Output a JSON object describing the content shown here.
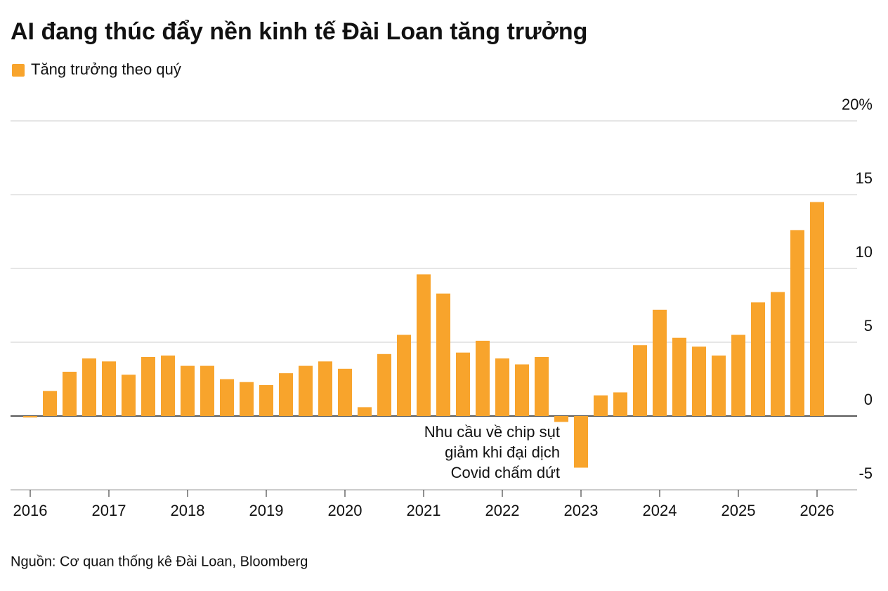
{
  "chart_data": {
    "type": "bar",
    "title": "AI đang thúc đẩy nền kinh tế Đài Loan tăng trưởng",
    "source": "Nguồn: Cơ quan thống kê Đài Loan, Bloomberg",
    "annotation": [
      "Nhu cầu về chip sụt",
      "giảm khi đại dịch",
      "Covid chấm dứt"
    ],
    "categories": [
      "2016",
      null,
      null,
      null,
      "2017",
      null,
      null,
      null,
      "2018",
      null,
      null,
      null,
      "2019",
      null,
      null,
      null,
      "2020",
      null,
      null,
      null,
      "2021",
      null,
      null,
      null,
      "2022",
      null,
      null,
      null,
      "2023",
      null,
      null,
      null,
      "2024",
      null,
      null,
      null,
      "2025",
      null,
      null,
      null,
      "2026"
    ],
    "series": [
      {
        "name": "Tăng trưởng theo quý",
        "color": "#f8a42c",
        "values": [
          -0.1,
          1.7,
          3.0,
          3.9,
          3.7,
          2.8,
          4.0,
          4.1,
          3.4,
          3.4,
          2.5,
          2.3,
          2.1,
          2.9,
          3.4,
          3.7,
          3.2,
          0.6,
          4.2,
          5.5,
          9.6,
          8.3,
          4.3,
          5.1,
          3.9,
          3.5,
          4.0,
          -0.4,
          -3.5,
          1.4,
          1.6,
          4.8,
          7.2,
          5.3,
          4.7,
          4.1,
          5.5,
          7.7,
          8.4,
          12.6,
          14.5
        ]
      }
    ],
    "ylim": [
      -5,
      20
    ],
    "yticks": [
      -5,
      0,
      5,
      10,
      15,
      {
        "value": 20,
        "label": "20%"
      }
    ],
    "grid": true
  }
}
